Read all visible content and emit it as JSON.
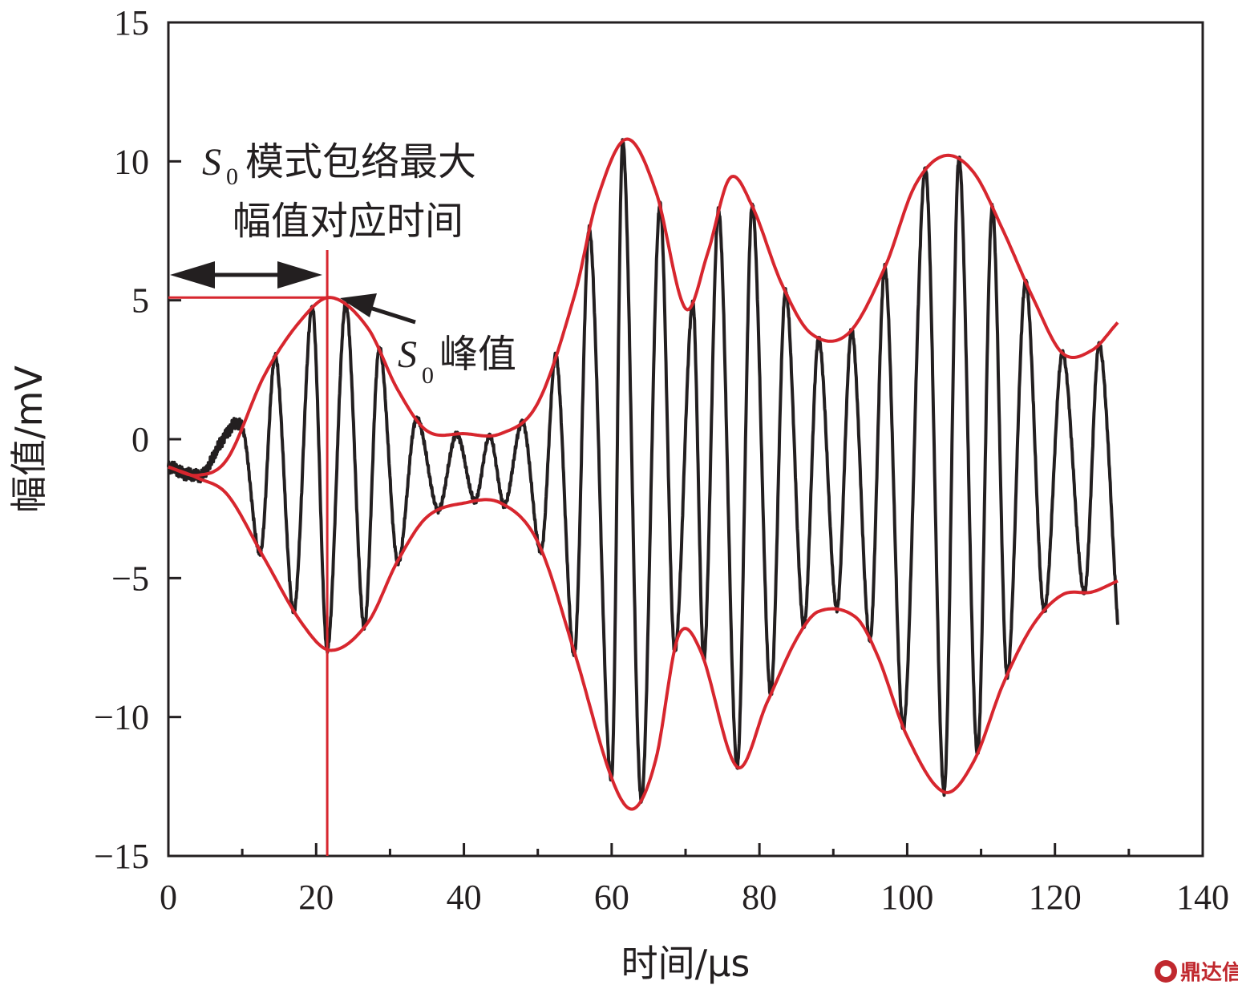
{
  "chart_data": {
    "type": "line",
    "title": "",
    "xlabel": "时间/μs",
    "ylabel": "幅值/mV",
    "xlim": [
      0,
      140
    ],
    "ylim": [
      -15,
      15
    ],
    "xticks": [
      "0",
      "20",
      "40",
      "60",
      "80",
      "100",
      "120",
      "140"
    ],
    "yticks": [
      "−15",
      "−10",
      "−5",
      "0",
      "5",
      "10",
      "15"
    ],
    "grid": false,
    "legend": "none",
    "series_colors": {
      "signal": "#231f20",
      "envelope": "#d7262e"
    },
    "envelope_upper": {
      "x": [
        0,
        4,
        8,
        13,
        18,
        22,
        27,
        31,
        35,
        40,
        45,
        50,
        55,
        58,
        62,
        66,
        70,
        73,
        76,
        79,
        83,
        87,
        92,
        97,
        101,
        105,
        109,
        113,
        117,
        121,
        125,
        128.5
      ],
      "y": [
        -1.0,
        -1.3,
        -0.7,
        2.3,
        4.3,
        5.1,
        4.0,
        1.8,
        0.3,
        0.2,
        0.2,
        1.3,
        5.2,
        8.6,
        10.8,
        8.9,
        4.7,
        6.7,
        9.4,
        8.4,
        5.6,
        3.8,
        3.8,
        6.2,
        9.1,
        10.2,
        9.6,
        7.5,
        5.1,
        3.1,
        3.2,
        4.2
      ]
    },
    "envelope_lower": {
      "x": [
        0,
        4,
        8,
        13,
        18,
        22,
        27,
        31,
        35,
        40,
        45,
        50,
        55,
        60,
        63,
        66,
        69,
        72,
        77,
        81,
        85,
        88,
        93,
        96,
        100,
        105,
        109,
        113,
        117,
        121,
        125,
        128.5
      ],
      "y": [
        -1.0,
        -1.4,
        -2.0,
        -4.3,
        -6.6,
        -7.6,
        -6.6,
        -4.4,
        -2.8,
        -2.3,
        -2.3,
        -3.7,
        -7.7,
        -12.2,
        -13.3,
        -11.5,
        -7.1,
        -7.6,
        -11.8,
        -9.5,
        -7.2,
        -6.2,
        -6.4,
        -7.8,
        -10.7,
        -12.7,
        -11.6,
        -8.8,
        -6.7,
        -5.6,
        -5.5,
        -5.1
      ]
    },
    "signal_peak_times": [
      4.5,
      10,
      14.5,
      19.5,
      24,
      28.5,
      33.5,
      39,
      43.5,
      48,
      52.5,
      57,
      61.5,
      66.5,
      71,
      74.5,
      79,
      83.5,
      88,
      92.5,
      97,
      102.5,
      107,
      111.5,
      116,
      121,
      126
    ],
    "signal_end_x": 128.5,
    "signal_end_y": -6.7,
    "signal_trough_times": [
      2.5,
      12.5,
      17,
      21.5,
      26.5,
      31,
      36.5,
      41.5,
      45.5,
      50.5,
      55,
      60,
      64,
      68.5,
      72.5,
      77,
      81.5,
      86,
      90.5,
      95,
      99.5,
      105,
      109.5,
      113.5,
      118.5,
      124
    ],
    "annotations": {
      "time_label_sym": "S",
      "time_label_sub": "0",
      "time_label_line1": "模式包络最大",
      "time_label_line2": "幅值对应时间",
      "peak_label_sym": "S",
      "peak_label_sub": "0",
      "peak_label_text": "峰值",
      "peak_time": 21.5,
      "peak_value": 5.1
    }
  },
  "watermark": "鼎达信"
}
